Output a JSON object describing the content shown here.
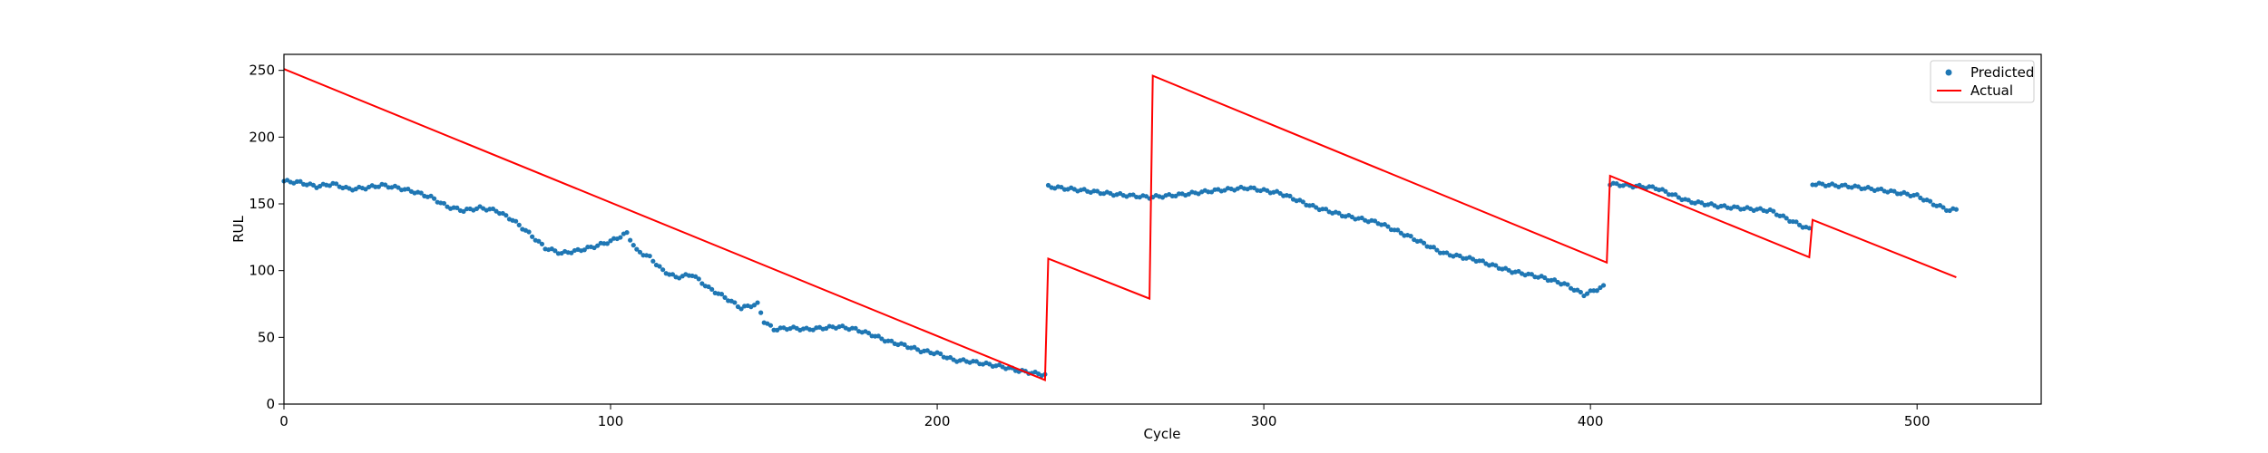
{
  "chart_data": {
    "type": "scatter",
    "title": "",
    "xlabel": "Cycle",
    "ylabel": "RUL",
    "xlim": [
      0,
      538
    ],
    "ylim": [
      0,
      262
    ],
    "xticks": [
      0,
      100,
      200,
      300,
      400,
      500
    ],
    "yticks": [
      0,
      50,
      100,
      150,
      200,
      250
    ],
    "grid": false,
    "legend_position": "top-right",
    "colors": {
      "predicted": "#1f77b4",
      "actual": "#ff0000"
    },
    "series": [
      {
        "name": "Predicted",
        "kind": "scatter",
        "anchors": [
          [
            0,
            167
          ],
          [
            5,
            166
          ],
          [
            10,
            163
          ],
          [
            15,
            165
          ],
          [
            20,
            161
          ],
          [
            25,
            162
          ],
          [
            30,
            164
          ],
          [
            35,
            162
          ],
          [
            40,
            159
          ],
          [
            45,
            155
          ],
          [
            50,
            148
          ],
          [
            55,
            145
          ],
          [
            60,
            147
          ],
          [
            65,
            145
          ],
          [
            70,
            138
          ],
          [
            75,
            128
          ],
          [
            80,
            117
          ],
          [
            85,
            113
          ],
          [
            90,
            115
          ],
          [
            95,
            118
          ],
          [
            100,
            122
          ],
          [
            105,
            128
          ],
          [
            108,
            115
          ],
          [
            112,
            110
          ],
          [
            116,
            100
          ],
          [
            120,
            95
          ],
          [
            125,
            97
          ],
          [
            130,
            87
          ],
          [
            135,
            80
          ],
          [
            140,
            72
          ],
          [
            145,
            75
          ],
          [
            147,
            62
          ],
          [
            150,
            56
          ],
          [
            155,
            57
          ],
          [
            160,
            56
          ],
          [
            165,
            57
          ],
          [
            170,
            58
          ],
          [
            175,
            56
          ],
          [
            180,
            52
          ],
          [
            185,
            47
          ],
          [
            190,
            44
          ],
          [
            195,
            40
          ],
          [
            200,
            38
          ],
          [
            205,
            33
          ],
          [
            210,
            32
          ],
          [
            215,
            30
          ],
          [
            220,
            28
          ],
          [
            225,
            25
          ],
          [
            230,
            23
          ],
          [
            233,
            22
          ]
        ],
        "segments": [
          {
            "x_range": [
              234,
              404
            ],
            "anchors": [
              [
                234,
                163
              ],
              [
                245,
                160
              ],
              [
                255,
                157
              ],
              [
                265,
                155
              ],
              [
                275,
                157
              ],
              [
                285,
                160
              ],
              [
                295,
                162
              ],
              [
                305,
                158
              ],
              [
                315,
                148
              ],
              [
                325,
                141
              ],
              [
                335,
                136
              ],
              [
                345,
                125
              ],
              [
                355,
                113
              ],
              [
                365,
                108
              ],
              [
                375,
                100
              ],
              [
                385,
                95
              ],
              [
                392,
                90
              ],
              [
                398,
                82
              ],
              [
                404,
                88
              ]
            ]
          },
          {
            "x_range": [
              406,
              467
            ],
            "anchors": [
              [
                406,
                165
              ],
              [
                415,
                163
              ],
              [
                420,
                162
              ],
              [
                425,
                157
              ],
              [
                430,
                152
              ],
              [
                440,
                148
              ],
              [
                450,
                146
              ],
              [
                455,
                145
              ],
              [
                460,
                139
              ],
              [
                467,
                131
              ]
            ]
          },
          {
            "x_range": [
              468,
              512
            ],
            "anchors": [
              [
                468,
                165
              ],
              [
                480,
                163
              ],
              [
                490,
                160
              ],
              [
                500,
                156
              ],
              [
                505,
                150
              ],
              [
                510,
                145
              ],
              [
                512,
                146
              ]
            ]
          }
        ]
      },
      {
        "name": "Actual",
        "kind": "line",
        "points": [
          [
            0,
            251
          ],
          [
            233,
            18
          ],
          [
            234,
            109
          ],
          [
            265,
            79
          ],
          [
            266,
            246
          ],
          [
            405,
            106
          ],
          [
            406,
            171
          ],
          [
            467,
            110
          ],
          [
            468,
            138
          ],
          [
            512,
            95
          ]
        ]
      }
    ]
  }
}
